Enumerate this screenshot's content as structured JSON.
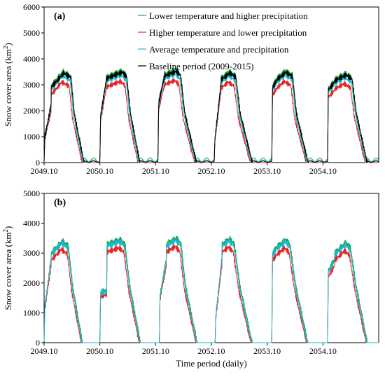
{
  "colors": {
    "lower_temp_higher_precip": "#1aa24a",
    "higher_temp_lower_precip": "#e8262a",
    "average": "#19b9cf",
    "baseline": "#000000"
  },
  "chart_data": [
    {
      "type": "line",
      "panel_label": "(a)",
      "title": "",
      "xlabel": "",
      "ylabel": "Snow cover area (km²)",
      "ylabel_base": "Snow cover area (km",
      "ylabel_sup": "2",
      "ylabel_close": ")",
      "ylim": [
        0,
        6000
      ],
      "yticks": [
        "0",
        "1000",
        "2000",
        "3000",
        "4000",
        "5000",
        "6000"
      ],
      "xtick_labels": [
        "2049.10",
        "2050.10",
        "2051.10",
        "2052.10",
        "2053.10",
        "2054.10"
      ],
      "x_unit": "months since 2049.10",
      "xlim": [
        0,
        72
      ],
      "legend_position": "top-right",
      "seasons": [
        {
          "start": 0,
          "fall_start": 1000,
          "accum_end": 2200,
          "peak_start": 2900,
          "peak": 3450,
          "peak_month": 4.2,
          "plateau_end": 5.8,
          "melt_mid": 6.5,
          "melt_end": 8.6
        },
        {
          "start": 12,
          "fall_start": 1800,
          "accum_end": 3300,
          "peak_start": 3250,
          "peak": 3480,
          "peak_month": 16.8,
          "plateau_end": 17.8,
          "melt_mid": 18.6,
          "melt_end": 20.6
        },
        {
          "start": 24.5,
          "fall_start": 2300,
          "accum_end": 3400,
          "peak_start": 3350,
          "peak": 3520,
          "peak_month": 28.5,
          "plateau_end": 29.4,
          "melt_mid": 30.3,
          "melt_end": 32.8
        },
        {
          "start": 36.6,
          "fall_start": 900,
          "accum_end": 3100,
          "peak_start": 3200,
          "peak": 3450,
          "peak_month": 40.0,
          "plateau_end": 41.3,
          "melt_mid": 42.2,
          "melt_end": 44.8
        },
        {
          "start": 49,
          "fall_start": 2900,
          "accum_end": 3300,
          "peak_start": 3250,
          "peak": 3480,
          "peak_month": 52.0,
          "plateau_end": 53.5,
          "melt_mid": 54.3,
          "melt_end": 56.8
        },
        {
          "start": 61,
          "fall_start": 2800,
          "accum_end": 3100,
          "peak_start": 3150,
          "peak": 3380,
          "peak_month": 65.0,
          "plateau_end": 66.3,
          "melt_mid": 67.2,
          "melt_end": 69.5
        }
      ],
      "series": [
        {
          "name": "Lower temperature and higher precipitation",
          "key": "lower_temp_higher_precip",
          "scale": 1.02,
          "shift": -0.1,
          "tail": 180
        },
        {
          "name": "Higher temperature and lower precipitation",
          "key": "higher_temp_lower_precip",
          "scale": 0.9,
          "shift": -0.4,
          "tail": 0
        },
        {
          "name": "Average temperature and precipitation",
          "key": "average",
          "scale": 0.97,
          "shift": -0.2,
          "tail": 100
        },
        {
          "name": "Baseline period (2009-2015)",
          "key": "baseline",
          "scale": 1.0,
          "shift": 0.0,
          "tail": 60
        }
      ]
    },
    {
      "type": "line",
      "panel_label": "(b)",
      "title": "",
      "xlabel": "Time period (daily)",
      "ylabel": "Snow cover area (km²)",
      "ylabel_base": "Snow cover area (km",
      "ylabel_sup": "2",
      "ylabel_close": ")",
      "ylim": [
        0,
        5000
      ],
      "yticks": [
        "0",
        "1000",
        "2000",
        "3000",
        "4000",
        "5000"
      ],
      "xtick_labels": [
        "2049.10",
        "2050.10",
        "2051.10",
        "2052.10",
        "2053.10",
        "2054.10"
      ],
      "x_unit": "months since 2049.10",
      "xlim": [
        0,
        72
      ],
      "seasons": [
        {
          "start": 0,
          "fall_start": 1200,
          "accum_end": 2800,
          "peak_start": 3000,
          "peak": 3400,
          "peak_month": 4.0,
          "plateau_end": 5.3,
          "melt_mid": 6.2,
          "melt_end": 8.3
        },
        {
          "start": 12,
          "fall_start": 1700,
          "accum_end": 1750,
          "peak_start": 3300,
          "peak": 3450,
          "peak_month": 16.5,
          "plateau_end": 17.5,
          "melt_mid": 18.5,
          "melt_end": 20.8
        },
        {
          "start": 24.8,
          "fall_start": 1600,
          "accum_end": 2800,
          "peak_start": 3300,
          "peak": 3500,
          "peak_month": 28.5,
          "plateau_end": 29.5,
          "melt_mid": 30.5,
          "melt_end": 33.0
        },
        {
          "start": 36.8,
          "fall_start": 900,
          "accum_end": 2900,
          "peak_start": 3300,
          "peak": 3480,
          "peak_month": 40.0,
          "plateau_end": 41.0,
          "melt_mid": 42.2,
          "melt_end": 44.8
        },
        {
          "start": 49,
          "fall_start": 3000,
          "accum_end": 3300,
          "peak_start": 3250,
          "peak": 3450,
          "peak_month": 52.0,
          "plateau_end": 53.0,
          "melt_mid": 54.2,
          "melt_end": 56.8
        },
        {
          "start": 61,
          "fall_start": 2400,
          "accum_end": 2800,
          "peak_start": 3000,
          "peak": 3350,
          "peak_month": 65.0,
          "plateau_end": 66.0,
          "melt_mid": 67.2,
          "melt_end": 69.6
        }
      ],
      "series": [
        {
          "name": "Lower temperature and higher precipitation",
          "key": "lower_temp_higher_precip",
          "scale": 1.0,
          "shift": -0.05,
          "tail": 0
        },
        {
          "name": "Higher temperature and lower precipitation",
          "key": "higher_temp_lower_precip",
          "scale": 0.92,
          "shift": -0.3,
          "tail": 0
        },
        {
          "name": "Average temperature and precipitation",
          "key": "average",
          "scale": 0.98,
          "shift": -0.15,
          "tail": 0
        }
      ]
    }
  ]
}
